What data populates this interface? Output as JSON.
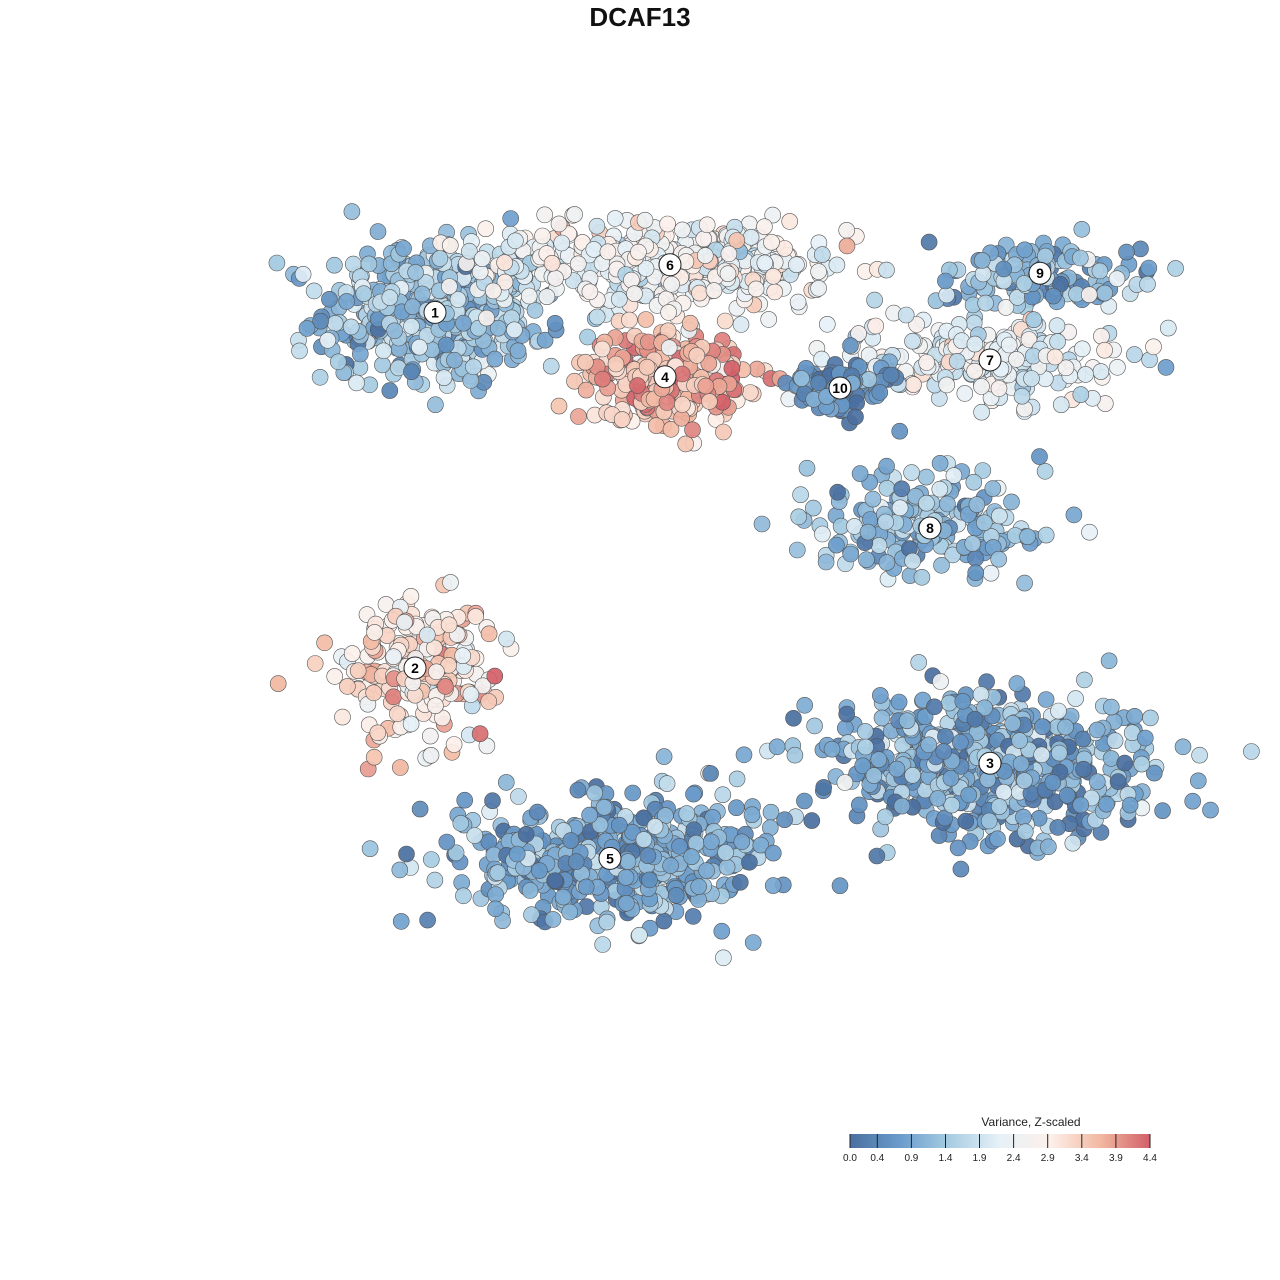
{
  "chart_data": {
    "type": "scatter",
    "title": "DCAF13",
    "xlabel": "",
    "ylabel": "",
    "grid": false,
    "legend": {
      "title": "Variance, Z-scaled",
      "placement": "bottom-right",
      "range": [
        0.0,
        4.4
      ],
      "ticks": [
        "0.0",
        "0.4",
        "0.9",
        "1.4",
        "1.9",
        "2.4",
        "2.9",
        "3.4",
        "3.9",
        "4.4"
      ],
      "colors": [
        "#4a6fa0",
        "#6a9ccb",
        "#a8cde3",
        "#e6f1f7",
        "#fdf0ea",
        "#f2b9a2",
        "#d25f68"
      ]
    },
    "clusters": [
      {
        "label": "1",
        "x": 0.235,
        "y": 0.585,
        "sx": 0.055,
        "sy": 0.06,
        "mean": 1.3,
        "sd": 0.45,
        "n": 520
      },
      {
        "label": "6",
        "x": 0.47,
        "y": 0.67,
        "sx": 0.09,
        "sy": 0.04,
        "mean": 2.5,
        "sd": 0.4,
        "n": 430
      },
      {
        "label": "4",
        "x": 0.465,
        "y": 0.47,
        "sx": 0.04,
        "sy": 0.04,
        "mean": 3.6,
        "sd": 0.45,
        "n": 300
      },
      {
        "label": "9",
        "x": 0.84,
        "y": 0.655,
        "sx": 0.055,
        "sy": 0.03,
        "mean": 1.1,
        "sd": 0.5,
        "n": 150
      },
      {
        "label": "7",
        "x": 0.79,
        "y": 0.5,
        "sx": 0.075,
        "sy": 0.04,
        "mean": 2.2,
        "sd": 0.45,
        "n": 230
      },
      {
        "label": "10",
        "x": 0.64,
        "y": 0.45,
        "sx": 0.025,
        "sy": 0.025,
        "mean": 0.5,
        "sd": 0.4,
        "n": 90
      },
      {
        "label": "8",
        "x": 0.73,
        "y": 0.2,
        "sx": 0.06,
        "sy": 0.045,
        "mean": 1.2,
        "sd": 0.5,
        "n": 200
      },
      {
        "label": "2",
        "x": 0.215,
        "y": -0.05,
        "sx": 0.04,
        "sy": 0.06,
        "mean": 3.0,
        "sd": 0.55,
        "n": 220
      },
      {
        "label": "3",
        "x": 0.79,
        "y": -0.22,
        "sx": 0.08,
        "sy": 0.06,
        "mean": 0.9,
        "sd": 0.6,
        "n": 620
      },
      {
        "label": "5",
        "x": 0.41,
        "y": -0.39,
        "sx": 0.075,
        "sy": 0.055,
        "mean": 1.0,
        "sd": 0.5,
        "n": 520
      }
    ]
  }
}
